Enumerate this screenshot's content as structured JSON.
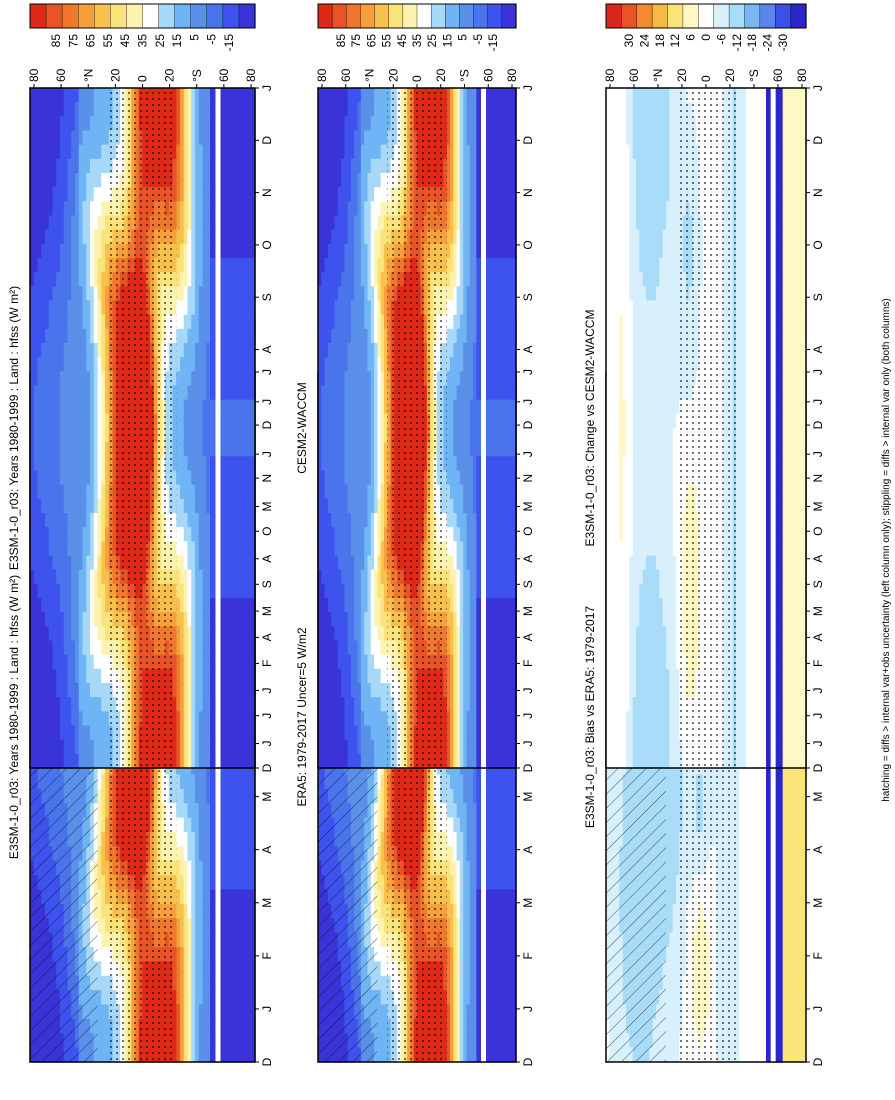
{
  "figure": {
    "footer": "hatching = diffs > internal var+obs uncertainty (left column only); stippling = diffs > internal var only (both columns)"
  },
  "colors": {
    "absolute_scale": [
      "#3a34d8",
      "#3e52ee",
      "#4a74ec",
      "#5b90ea",
      "#6fb4f4",
      "#a8d8f8",
      "#ffffff",
      "#fdf3b0",
      "#fbe37b",
      "#f8c04c",
      "#f6a03c",
      "#f0782e",
      "#e85428",
      "#de2818"
    ],
    "diff_scale": [
      "#2b26cc",
      "#3c50e8",
      "#5a86ec",
      "#79b7f2",
      "#a8dcf8",
      "#d8f0fc",
      "#ffffff",
      "#fff8c4",
      "#fbe37b",
      "#f8b843",
      "#f28a2e",
      "#e85428",
      "#d9261a"
    ]
  },
  "chart_data": [
    {
      "type": "heatmap",
      "id": "p1",
      "title": "E3SM-1-0_r03: Years 1980-1999 : Land : hfss (W m²)",
      "x_months": [
        "D",
        "J",
        "F",
        "M",
        "A",
        "M",
        "J",
        "J",
        "A",
        "S",
        "O",
        "N",
        "D",
        "J"
      ],
      "y_labels": [
        "80",
        "60",
        "°N",
        "20",
        "0",
        "20",
        "°S",
        "60",
        "80"
      ],
      "ylim": [
        -90,
        90
      ],
      "colorbar": [
        "85",
        "75",
        "65",
        "55",
        "45",
        "35",
        "25",
        "15",
        "5",
        "-5",
        "-15"
      ],
      "field": "absolute",
      "hatching": true,
      "stippling": true
    },
    {
      "type": "heatmap",
      "id": "p2",
      "title": "E3SM-1-0_r03: Years 1980-1999 : Land : hfss (W m²)",
      "x_months": [
        "D",
        "J",
        "F",
        "M",
        "A",
        "M",
        "J",
        "J",
        "A",
        "S",
        "O",
        "N",
        "D",
        "J"
      ],
      "y_labels": [
        "80",
        "60",
        "°N",
        "20",
        "0",
        "20",
        "°S",
        "60",
        "80"
      ],
      "ylim": [
        -90,
        90
      ],
      "colorbar": [
        "85",
        "75",
        "65",
        "55",
        "45",
        "35",
        "25",
        "15",
        "5",
        "-5",
        "-15"
      ],
      "field": "absolute",
      "hatching": false,
      "stippling": true
    },
    {
      "type": "heatmap",
      "id": "p3",
      "title": "ERA5: 1979-2017 Uncer=5 W/m2",
      "x_months": [
        "D",
        "J",
        "F",
        "M",
        "A",
        "M",
        "J",
        "J",
        "A",
        "S",
        "O",
        "N",
        "D",
        "J"
      ],
      "y_labels": [
        "80",
        "60",
        "°N",
        "20",
        "0",
        "20",
        "°S",
        "60",
        "80"
      ],
      "ylim": [
        -90,
        90
      ],
      "colorbar": [
        "85",
        "75",
        "65",
        "55",
        "45",
        "35",
        "25",
        "15",
        "5",
        "-5",
        "-15"
      ],
      "field": "absolute",
      "hatching": true,
      "stippling": true
    },
    {
      "type": "heatmap",
      "id": "p4",
      "title": "CESM2-WACCM",
      "x_months": [
        "D",
        "J",
        "F",
        "M",
        "A",
        "M",
        "J",
        "J",
        "A",
        "S",
        "O",
        "N",
        "D",
        "J"
      ],
      "y_labels": [
        "80",
        "60",
        "°N",
        "20",
        "0",
        "20",
        "°S",
        "60",
        "80"
      ],
      "ylim": [
        -90,
        90
      ],
      "colorbar": [
        "85",
        "75",
        "65",
        "55",
        "45",
        "35",
        "25",
        "15",
        "5",
        "-5",
        "-15"
      ],
      "field": "absolute",
      "hatching": false,
      "stippling": true
    },
    {
      "type": "heatmap",
      "id": "p5",
      "title": "E3SM-1-0_r03: Bias vs ERA5: 1979-2017",
      "x_months": [
        "D",
        "J",
        "F",
        "M",
        "A",
        "M",
        "J",
        "J",
        "A",
        "S",
        "O",
        "N",
        "D",
        "J"
      ],
      "y_labels": [
        "80",
        "60",
        "°N",
        "20",
        "0",
        "20",
        "°S",
        "60",
        "80"
      ],
      "ylim": [
        -90,
        90
      ],
      "colorbar": [
        "30",
        "24",
        "18",
        "12",
        "6",
        "0",
        "-6",
        "-12",
        "-18",
        "-24",
        "-30"
      ],
      "field": "bias",
      "hatching": true,
      "stippling": true
    },
    {
      "type": "heatmap",
      "id": "p6",
      "title": "E3SM-1-0_r03: Change vs CESM2-WACCM",
      "x_months": [
        "D",
        "J",
        "F",
        "M",
        "A",
        "M",
        "J",
        "J",
        "A",
        "S",
        "O",
        "N",
        "D",
        "J"
      ],
      "y_labels": [
        "80",
        "60",
        "°N",
        "20",
        "0",
        "20",
        "°S",
        "60",
        "80"
      ],
      "ylim": [
        -90,
        90
      ],
      "colorbar": [
        "30",
        "24",
        "18",
        "12",
        "6",
        "0",
        "-6",
        "-12",
        "-18",
        "-24",
        "-30"
      ],
      "field": "change",
      "hatching": false,
      "stippling": true
    }
  ]
}
